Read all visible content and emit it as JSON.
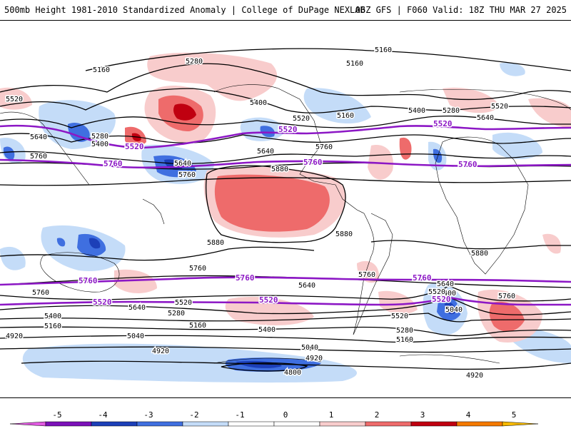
{
  "header": {
    "title": "500mb Height 1981-2010 Standardized Anomaly | College of DuPage NEXLAB",
    "run": "06Z GFS | F060 Valid: 18Z THU MAR 27 2025"
  },
  "colors": {
    "neg5": "#e15ae1",
    "neg4": "#7b10b8",
    "neg3": "#1c3fb8",
    "neg2": "#3f6fe0",
    "neg1": "#c4dcf8",
    "zero": "#ffffff",
    "pos1": "#f8cccc",
    "pos2": "#ee6b6b",
    "pos3": "#c00010",
    "pos4": "#f47900",
    "pos5": "#f6b900",
    "contour": "#000000",
    "highlight": "#8c17c5"
  },
  "contour_labels": [
    {
      "text": "5160"
    },
    {
      "text": "5280"
    },
    {
      "text": "5160"
    },
    {
      "text": "5160"
    },
    {
      "text": "5520"
    },
    {
      "text": "5400"
    },
    {
      "text": "5520"
    },
    {
      "text": "5160"
    },
    {
      "text": "5400"
    },
    {
      "text": "5280"
    },
    {
      "text": "5640"
    },
    {
      "text": "5520"
    },
    {
      "text": "5640"
    },
    {
      "text": "5280"
    },
    {
      "text": "5400"
    },
    {
      "text": "5760"
    },
    {
      "text": "5640"
    },
    {
      "text": "5760"
    },
    {
      "text": "5640"
    },
    {
      "text": "5880"
    },
    {
      "text": "5760"
    },
    {
      "text": "5880"
    },
    {
      "text": "5880"
    },
    {
      "text": "5880"
    },
    {
      "text": "5760"
    },
    {
      "text": "5760"
    },
    {
      "text": "5640"
    },
    {
      "text": "5640"
    },
    {
      "text": "5400"
    },
    {
      "text": "5040"
    },
    {
      "text": "5760"
    },
    {
      "text": "5400"
    },
    {
      "text": "5520"
    },
    {
      "text": "5280"
    },
    {
      "text": "5160"
    },
    {
      "text": "5400"
    },
    {
      "text": "5040"
    },
    {
      "text": "4920"
    },
    {
      "text": "4920"
    },
    {
      "text": "5040"
    },
    {
      "text": "4920"
    },
    {
      "text": "4800"
    },
    {
      "text": "5520"
    },
    {
      "text": "5280"
    },
    {
      "text": "5160"
    },
    {
      "text": "4920"
    },
    {
      "text": "5160"
    },
    {
      "text": "5640"
    },
    {
      "text": "5520"
    },
    {
      "text": "5760"
    }
  ],
  "highlight_labels": [
    {
      "text": "5520"
    },
    {
      "text": "5520"
    },
    {
      "text": "5520"
    },
    {
      "text": "5760"
    },
    {
      "text": "5760"
    },
    {
      "text": "5760"
    },
    {
      "text": "5760"
    },
    {
      "text": "5760"
    },
    {
      "text": "5760"
    },
    {
      "text": "5520"
    },
    {
      "text": "5520"
    },
    {
      "text": "5520"
    }
  ],
  "colorbar": {
    "ticks": [
      "-5",
      "-4",
      "-3",
      "-2",
      "-1",
      "0",
      "1",
      "2",
      "3",
      "4",
      "5"
    ]
  }
}
